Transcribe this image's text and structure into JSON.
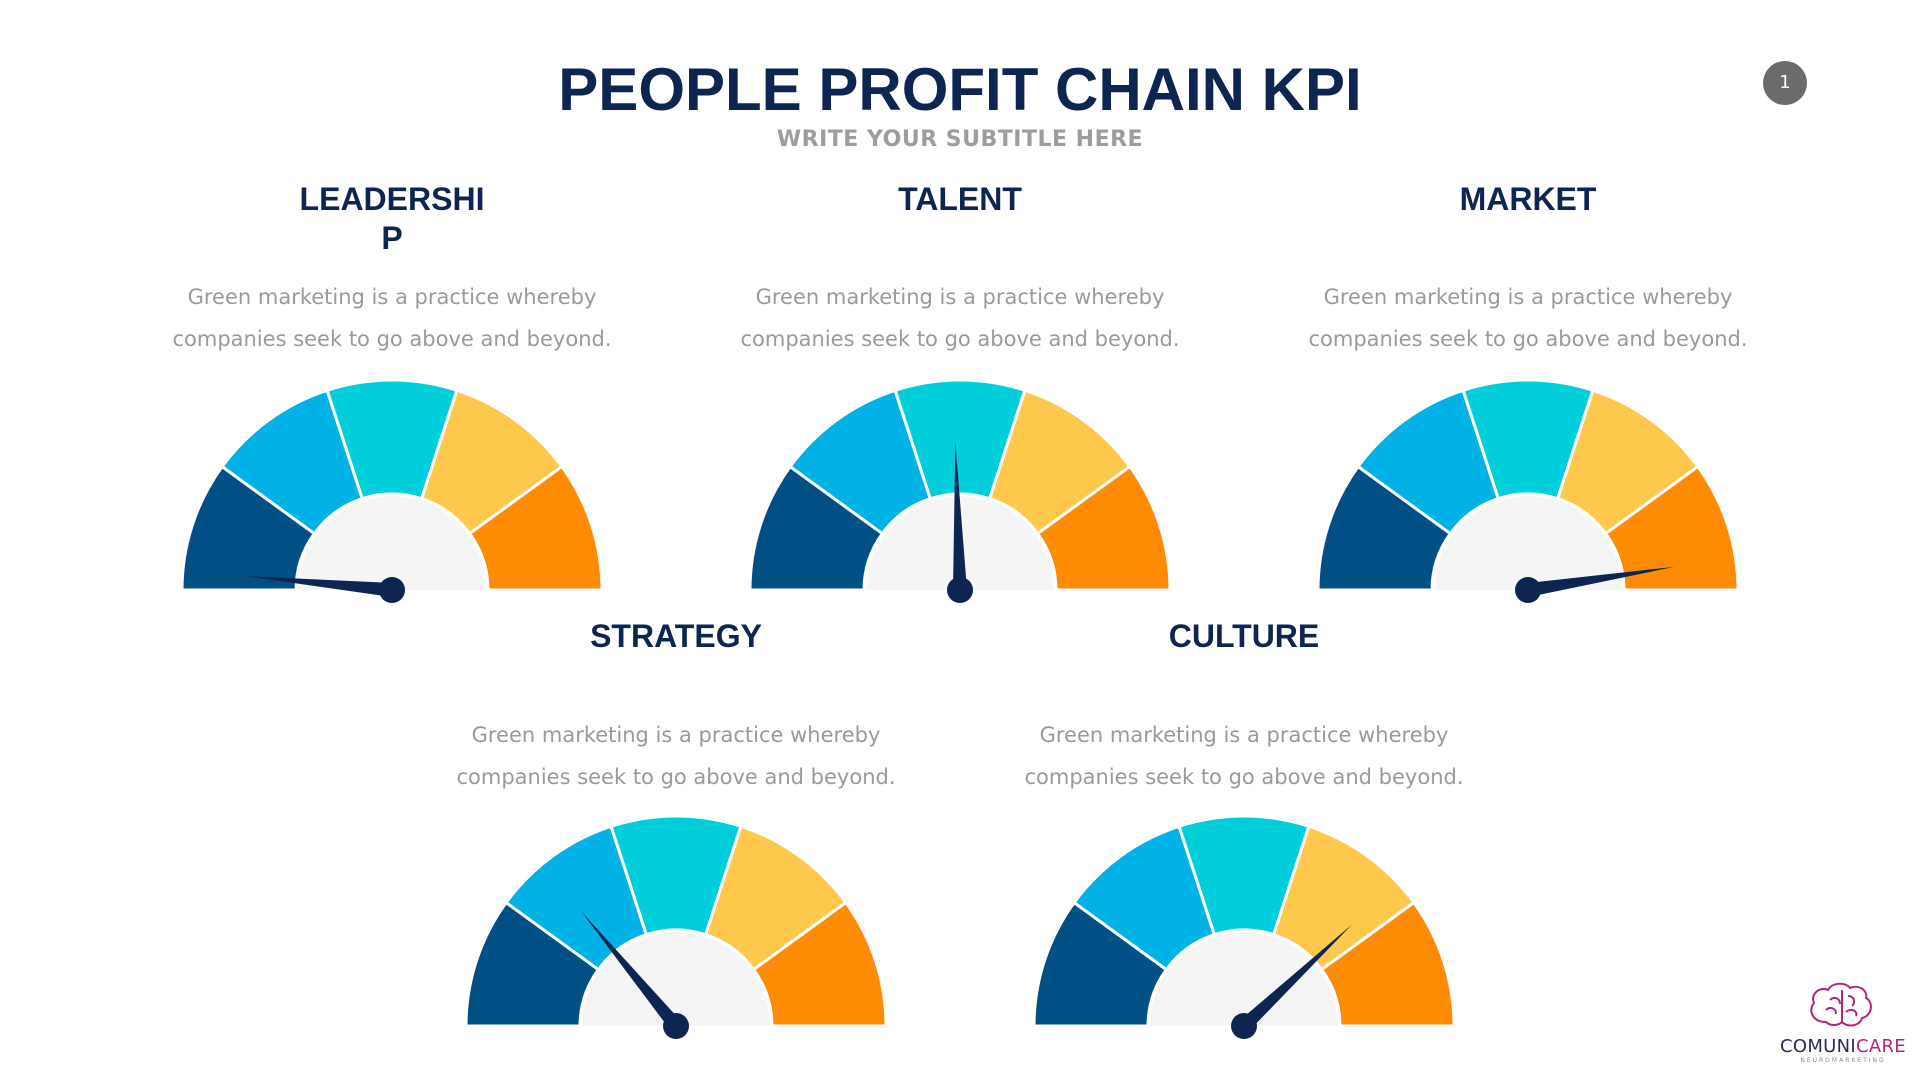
{
  "slide": {
    "title": "PEOPLE PROFIT CHAIN KPI",
    "subtitle": "WRITE YOUR SUBTITLE HERE",
    "page_number": "1"
  },
  "brand": {
    "name_prefix": "COMUNI",
    "name_suffix": "CARE",
    "tagline": "NEUROMARKETING"
  },
  "colors": {
    "segments": [
      "#005085",
      "#00b2e5",
      "#00cedb",
      "#fdc84c",
      "#fd8b04"
    ],
    "hub": "#f5f5f5",
    "needle": "#0d2550",
    "heading": "#0d2550",
    "body_text": "#9a9a9a"
  },
  "chart_data": [
    {
      "type": "gauge",
      "title": "LEADERSHIP",
      "description": "Green marketing is a practice whereby companies seek to go above and beyond.",
      "segments": 5,
      "value": 0.03
    },
    {
      "type": "gauge",
      "title": "TALENT",
      "description": "Green marketing is a practice whereby companies seek to go above and beyond.",
      "segments": 5,
      "value": 0.49
    },
    {
      "type": "gauge",
      "title": "MARKET",
      "description": "Green marketing is a practice whereby companies seek to go above and beyond.",
      "segments": 5,
      "value": 0.95
    },
    {
      "type": "gauge",
      "title": "STRATEGY",
      "description": "Green marketing is a practice whereby companies seek to go above and beyond.",
      "segments": 5,
      "value": 0.28
    },
    {
      "type": "gauge",
      "title": "CULTURE",
      "description": "Green marketing is a practice whereby companies seek to go above and beyond.",
      "segments": 5,
      "value": 0.76
    }
  ]
}
